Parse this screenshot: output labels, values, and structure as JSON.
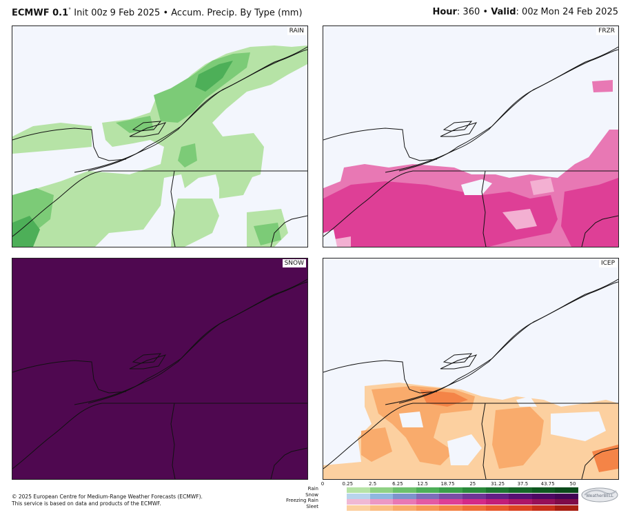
{
  "header": {
    "model": "ECMWF 0.1",
    "degree": "°",
    "init": " Init 00z 9 Feb 2025 • Accum. Precip. By Type (mm)",
    "hour_label": "Hour",
    "hour_value": ": 360 • ",
    "valid_label": "Valid",
    "valid_value": ": 00z Mon 24 Feb 2025"
  },
  "panels": [
    {
      "label": "RAIN"
    },
    {
      "label": "FRZR"
    },
    {
      "label": "SNOW"
    },
    {
      "label": "ICEP"
    }
  ],
  "legend": {
    "ticks": [
      "0",
      "0.25",
      "2.5",
      "6.25",
      "12.5",
      "18.75",
      "25",
      "31.25",
      "37.5",
      "43.75",
      "50"
    ],
    "rows": [
      "Rain",
      "Snow",
      "Freezing Rain",
      "Sleet"
    ],
    "colors": {
      "rain": [
        "#b6e3a6",
        "#8fd184",
        "#6cc06c",
        "#4daf58",
        "#3a9f4a",
        "#2a8a3c",
        "#1d7531",
        "#156628",
        "#0e5720",
        "#0a4a1a"
      ],
      "snow": [
        "#b8d4ec",
        "#8fb7df",
        "#7d93cc",
        "#7d6db9",
        "#7a4ea5",
        "#6e3595",
        "#621f85",
        "#571073",
        "#4d0863",
        "#420555"
      ],
      "frzr": [
        "#f0b8d4",
        "#ec98c4",
        "#e878b4",
        "#e35aa3",
        "#de3f96",
        "#d42a88",
        "#c21e78",
        "#ad1668",
        "#961058",
        "#7e0b49"
      ],
      "icep": [
        "#fcd0a0",
        "#fbbe84",
        "#f9ab6c",
        "#f79858",
        "#f48447",
        "#ef6f38",
        "#e85a2c",
        "#dc4422",
        "#c8301a",
        "#a81f12"
      ]
    }
  },
  "copyright": {
    "line1": "© 2025 European Centre for Medium-Range Weather Forecasts (ECMWF).",
    "line2": "This service is based on data and products of the ECMWF."
  },
  "logo": {
    "text": "WeatherBELL"
  }
}
